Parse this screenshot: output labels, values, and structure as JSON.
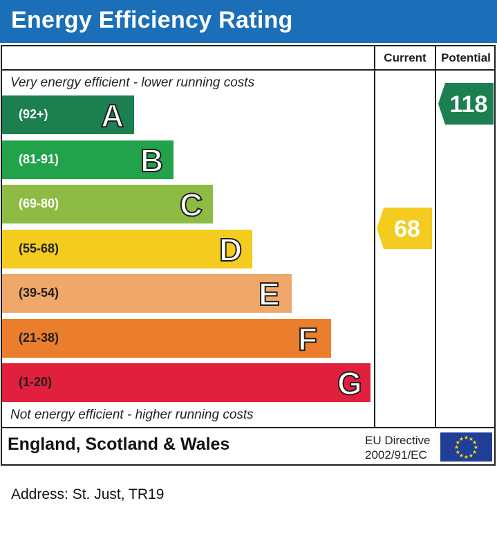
{
  "header": {
    "title": "Energy Efficiency Rating"
  },
  "columns": {
    "current": "Current",
    "potential": "Potential"
  },
  "notes": {
    "top": "Very energy efficient - lower running costs",
    "bottom": "Not energy efficient - higher running costs"
  },
  "footer": {
    "region": "England, Scotland & Wales",
    "directive_line1": "EU Directive",
    "directive_line2": "2002/91/EC"
  },
  "address": "Address: St. Just, TR19",
  "chart_data": {
    "type": "bar",
    "categories": [
      "A",
      "B",
      "C",
      "D",
      "E",
      "F",
      "G"
    ],
    "ranges": [
      "(92+)",
      "(81-91)",
      "(69-80)",
      "(55-68)",
      "(39-54)",
      "(21-38)",
      "(1-20)"
    ],
    "colors": [
      "#1b7f4f",
      "#22a24b",
      "#8dbb44",
      "#f4cc20",
      "#f0a86a",
      "#eb7e2c",
      "#e0203c"
    ],
    "current": {
      "value": 68,
      "label": "68",
      "color": "#f4cc20"
    },
    "potential": {
      "value": 118,
      "label": "118",
      "color": "#1b7f4f"
    }
  }
}
